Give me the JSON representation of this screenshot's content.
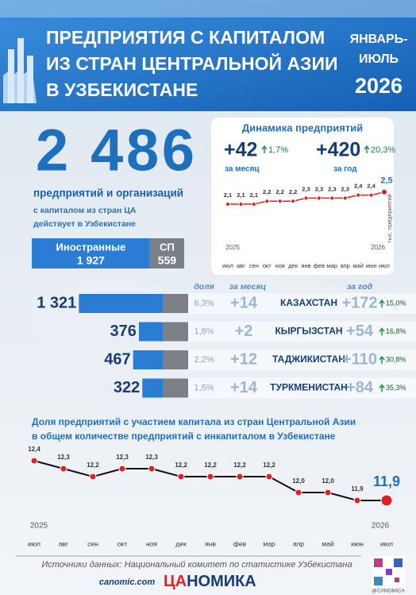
{
  "header": {
    "title_lines": [
      "ПРЕДПРИЯТИЯ С КАПИТАЛОМ",
      "ИЗ СТРАН ЦЕНТРАЛЬНОЙ АЗИИ",
      "В УЗБЕКИСТАНЕ"
    ],
    "period_lines": [
      "ЯНВАРЬ-",
      "ИЮЛЬ"
    ],
    "year": "2026"
  },
  "summary": {
    "total": "2 486",
    "caption": "предприятий и организаций",
    "note_lines": [
      "с капиталом из стран ЦА",
      "действует в Узбекистане"
    ],
    "split": [
      {
        "name": "Иностранные",
        "value": 1927,
        "label": "1 927",
        "color": "#2b7dd4"
      },
      {
        "name": "СП",
        "value": 559,
        "label": "559",
        "color": "#7b8087"
      }
    ]
  },
  "chart_data": [
    {
      "type": "line",
      "title": "Динамика предприятий",
      "stats": [
        {
          "value": "+42",
          "change": "1,7%",
          "period": "за месяц"
        },
        {
          "value": "+420",
          "change": "20,3%",
          "period": "за год"
        }
      ],
      "categories": [
        "июл",
        "авг",
        "сен",
        "окт",
        "ноя",
        "дек",
        "янв",
        "фев",
        "мар",
        "апр",
        "май",
        "июн",
        "июл"
      ],
      "values": [
        2.1,
        2.1,
        2.1,
        2.2,
        2.2,
        2.2,
        2.3,
        2.3,
        2.3,
        2.3,
        2.4,
        2.4,
        2.5
      ],
      "value_labels": [
        "2,1",
        "2,1",
        "2,1",
        "2,2",
        "2,2",
        "2,2",
        "2,3",
        "2,3",
        "2,3",
        "2,3",
        "2,4",
        "2,4",
        "2,5"
      ],
      "ylim": [
        1.6,
        2.6
      ],
      "y_label": "тыс. предприятий",
      "year_labels": [
        "2025",
        "2026"
      ],
      "color": "#e02020"
    },
    {
      "type": "hbar",
      "headers": {
        "share": "доля",
        "month": "за месяц",
        "year": "за год"
      },
      "categories": [
        "КАЗАХСТАН",
        "КЫРГЫЗСТАН",
        "ТАДЖИКИСТАН",
        "ТУРКМЕНИСТАН"
      ],
      "values": [
        1321,
        376,
        467,
        322
      ],
      "value_labels": [
        "1 321",
        "376",
        "467",
        "322"
      ],
      "share": [
        "6,3%",
        "1,8%",
        "2,2%",
        "1,5%"
      ],
      "month_change": [
        "+14",
        "+2",
        "+12",
        "+14"
      ],
      "year_change": [
        "+172",
        "+54",
        "+110",
        "+84"
      ],
      "year_change_pct": [
        "15,0%",
        "16,8%",
        "30,8%",
        "35,3%"
      ],
      "xlim": [
        0,
        1400
      ],
      "color": "#2b7dd4"
    },
    {
      "type": "line",
      "title_lines": [
        "Доля предприятий с участием капитала из стран Центральной Азии",
        "в общем количестве предприятий с инкапиталом в Узбекистане"
      ],
      "categories": [
        "июл",
        "авг",
        "сен",
        "окт",
        "ноя",
        "дек",
        "янв",
        "фев",
        "мар",
        "апр",
        "май",
        "июн",
        "июл"
      ],
      "values": [
        12.4,
        12.3,
        12.2,
        12.3,
        12.3,
        12.2,
        12.2,
        12.2,
        12.2,
        12.0,
        12.0,
        11.9,
        11.9
      ],
      "value_labels": [
        "12,4",
        "12,3",
        "12,2",
        "12,3",
        "12,3",
        "12,2",
        "12,2",
        "12,2",
        "12,2",
        "12,0",
        "12,0",
        "11,9",
        "11,9"
      ],
      "ylim": [
        11.6,
        12.6
      ],
      "year_labels": [
        "2025",
        "2026"
      ],
      "color": "#e02020"
    }
  ],
  "footer": {
    "source": "Источники данных: Национальный комитет по статистике Узбекистана",
    "site": "canomic.com",
    "brand": [
      "ЦА",
      "НОМИКА"
    ],
    "handle": "@CANOMICA"
  }
}
